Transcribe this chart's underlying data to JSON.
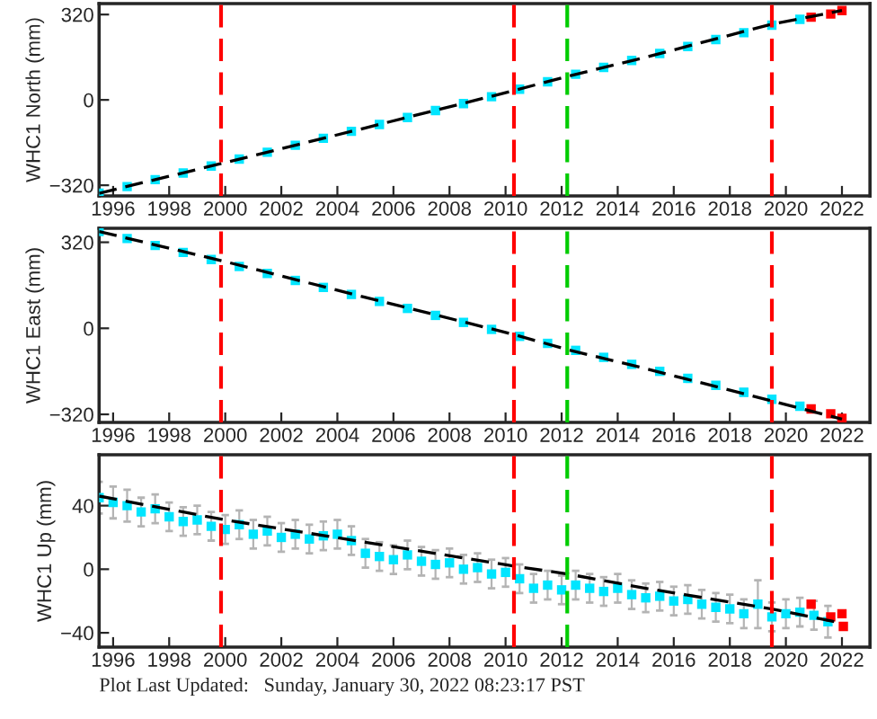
{
  "chart_data": [
    {
      "type": "scatter",
      "ylabel": "WHC1 North (mm)",
      "xlim": [
        1995.5,
        2023.0
      ],
      "ylim": [
        -360,
        361
      ],
      "xticks": [
        1996,
        1998,
        2000,
        2002,
        2004,
        2006,
        2008,
        2010,
        2012,
        2014,
        2016,
        2018,
        2020,
        2022
      ],
      "yticks": [
        -320,
        0,
        320
      ],
      "grid": false,
      "legend": false,
      "series": [
        {
          "color": "#00e5ff",
          "marker": "square",
          "x": [
            1995.5,
            1996.5,
            1997.5,
            1998.5,
            1999.5,
            2000.5,
            2001.5,
            2002.5,
            2003.5,
            2004.5,
            2005.5,
            2006.5,
            2007.5,
            2008.5,
            2009.5,
            2010.5,
            2011.5,
            2012.5,
            2013.5,
            2014.5,
            2015.5,
            2016.5,
            2017.5,
            2018.5,
            2019.5,
            2020.5
          ],
          "values": [
            -350,
            -325,
            -299,
            -274,
            -248,
            -222,
            -196,
            -170,
            -144,
            -118,
            -92,
            -66,
            -40,
            -14,
            12,
            40,
            68,
            96,
            122,
            148,
            174,
            200,
            226,
            252,
            280,
            302
          ],
          "errors": [
            4,
            4,
            4,
            4,
            4,
            4,
            4,
            4,
            4,
            4,
            4,
            4,
            4,
            4,
            4,
            4,
            4,
            4,
            4,
            4,
            4,
            4,
            4,
            4,
            4,
            4
          ]
        },
        {
          "color": "#ff0000",
          "marker": "square",
          "x": [
            2020.9,
            2021.6,
            2022.0
          ],
          "values": [
            310,
            322,
            335
          ]
        },
        {
          "type": "line",
          "color": "#000000",
          "line_style": "dashed",
          "marker": "none",
          "x": [
            1995.5,
            2000,
            2005,
            2010.3,
            2012.2,
            2015,
            2019.5,
            2022
          ],
          "values": [
            -350,
            -235,
            -105,
            35,
            88,
            160,
            284,
            335
          ]
        }
      ],
      "ref_lines": [
        {
          "axis": "x",
          "value": 1999.85,
          "color": "#ff0000",
          "line_style": "dashed"
        },
        {
          "axis": "x",
          "value": 2010.3,
          "color": "#ff0000",
          "line_style": "dashed"
        },
        {
          "axis": "x",
          "value": 2012.2,
          "color": "#00cc00",
          "line_style": "dashed"
        },
        {
          "axis": "x",
          "value": 2019.5,
          "color": "#ff0000",
          "line_style": "dashed"
        }
      ]
    },
    {
      "type": "scatter",
      "ylabel": "WHC1 East (mm)",
      "xlim": [
        1995.5,
        2023.0
      ],
      "ylim": [
        -350,
        372
      ],
      "xticks": [
        1996,
        1998,
        2000,
        2002,
        2004,
        2006,
        2008,
        2010,
        2012,
        2014,
        2016,
        2018,
        2020,
        2022
      ],
      "yticks": [
        -320,
        0,
        320
      ],
      "grid": false,
      "legend": false,
      "series": [
        {
          "color": "#00e5ff",
          "marker": "square",
          "x": [
            1995.5,
            1996.5,
            1997.5,
            1998.5,
            1999.5,
            2000.5,
            2001.5,
            2002.5,
            2003.5,
            2004.5,
            2005.5,
            2006.5,
            2007.5,
            2008.5,
            2009.5,
            2010.5,
            2011.5,
            2012.5,
            2013.5,
            2014.5,
            2015.5,
            2016.5,
            2017.5,
            2018.5,
            2019.5,
            2020.5
          ],
          "values": [
            360,
            334,
            308,
            282,
            256,
            230,
            204,
            178,
            152,
            126,
            100,
            74,
            48,
            22,
            -4,
            -30,
            -56,
            -82,
            -108,
            -134,
            -160,
            -186,
            -212,
            -238,
            -264,
            -290
          ],
          "errors": [
            4,
            4,
            4,
            4,
            4,
            4,
            4,
            4,
            4,
            4,
            4,
            4,
            4,
            4,
            4,
            4,
            4,
            4,
            4,
            4,
            4,
            4,
            4,
            12,
            4,
            4
          ]
        },
        {
          "color": "#ff0000",
          "marker": "square",
          "x": [
            2020.9,
            2021.6,
            2022.0
          ],
          "values": [
            -300,
            -318,
            -335
          ]
        },
        {
          "type": "line",
          "color": "#000000",
          "line_style": "dashed",
          "marker": "none",
          "x": [
            1995.5,
            2000,
            2005,
            2010.3,
            2012.2,
            2015,
            2019.5,
            2022
          ],
          "values": [
            360,
            248,
            115,
            -23,
            -79,
            -150,
            -270,
            -338
          ]
        }
      ],
      "ref_lines": [
        {
          "axis": "x",
          "value": 1999.85,
          "color": "#ff0000",
          "line_style": "dashed"
        },
        {
          "axis": "x",
          "value": 2010.3,
          "color": "#ff0000",
          "line_style": "dashed"
        },
        {
          "axis": "x",
          "value": 2012.2,
          "color": "#00cc00",
          "line_style": "dashed"
        },
        {
          "axis": "x",
          "value": 2019.5,
          "color": "#ff0000",
          "line_style": "dashed"
        }
      ]
    },
    {
      "type": "scatter",
      "ylabel": "WHC1 Up (mm)",
      "xlim": [
        1995.5,
        2023.0
      ],
      "ylim": [
        -49,
        72
      ],
      "xticks": [
        1996,
        1998,
        2000,
        2002,
        2004,
        2006,
        2008,
        2010,
        2012,
        2014,
        2016,
        2018,
        2020,
        2022
      ],
      "yticks": [
        -40,
        0,
        40
      ],
      "grid": false,
      "legend": false,
      "annotations": [
        "Plot Last Updated:   Sunday, January 30, 2022 08:23:17 PST"
      ],
      "series": [
        {
          "color": "#00e5ff",
          "marker": "square",
          "x": [
            1995.5,
            1996.0,
            1996.5,
            1997.0,
            1997.5,
            1998.0,
            1998.5,
            1999.0,
            1999.5,
            2000.0,
            2000.5,
            2001.0,
            2001.5,
            2002.0,
            2002.5,
            2003.0,
            2003.5,
            2004.0,
            2004.5,
            2005.0,
            2005.5,
            2006.0,
            2006.5,
            2007.0,
            2007.5,
            2008.0,
            2008.5,
            2009.0,
            2009.5,
            2010.0,
            2010.5,
            2011.0,
            2011.5,
            2012.0,
            2012.5,
            2013.0,
            2013.5,
            2014.0,
            2014.5,
            2015.0,
            2015.5,
            2016.0,
            2016.5,
            2017.0,
            2017.5,
            2018.0,
            2018.5,
            2019.0,
            2019.5,
            2020.0,
            2020.5,
            2021.0,
            2021.5
          ],
          "values": [
            45,
            42,
            40,
            36,
            38,
            33,
            30,
            31,
            27,
            25,
            28,
            22,
            24,
            20,
            22,
            19,
            21,
            22,
            18,
            10,
            8,
            6,
            9,
            5,
            3,
            4,
            0,
            1,
            -3,
            -2,
            -6,
            -12,
            -10,
            -13,
            -10,
            -12,
            -14,
            -12,
            -16,
            -18,
            -17,
            -20,
            -19,
            -22,
            -24,
            -25,
            -28,
            -22,
            -30,
            -28,
            -27,
            -29,
            -33
          ],
          "errors": [
            10,
            10,
            10,
            9,
            9,
            9,
            9,
            9,
            9,
            9,
            9,
            9,
            9,
            9,
            9,
            9,
            9,
            9,
            9,
            9,
            9,
            9,
            9,
            9,
            9,
            9,
            9,
            9,
            9,
            9,
            9,
            9,
            9,
            9,
            9,
            9,
            9,
            9,
            9,
            9,
            9,
            9,
            9,
            9,
            9,
            9,
            9,
            15,
            9,
            9,
            9,
            9,
            10
          ]
        },
        {
          "color": "#ff0000",
          "marker": "square",
          "x": [
            2020.9,
            2021.6,
            2022.0,
            2022.05
          ],
          "values": [
            -22,
            -30,
            -28,
            -36
          ]
        },
        {
          "type": "line",
          "color": "#000000",
          "line_style": "dashed",
          "marker": "none",
          "x": [
            1995.5,
            2000,
            2005,
            2010.3,
            2012.2,
            2015,
            2019.5,
            2022
          ],
          "values": [
            46,
            31,
            17,
            2,
            -3,
            -12,
            -25,
            -34
          ]
        }
      ],
      "ref_lines": [
        {
          "axis": "x",
          "value": 1999.85,
          "color": "#ff0000",
          "line_style": "dashed"
        },
        {
          "axis": "x",
          "value": 2010.3,
          "color": "#ff0000",
          "line_style": "dashed"
        },
        {
          "axis": "x",
          "value": 2012.2,
          "color": "#00cc00",
          "line_style": "dashed"
        },
        {
          "axis": "x",
          "value": 2019.5,
          "color": "#ff0000",
          "line_style": "dashed"
        }
      ]
    }
  ]
}
